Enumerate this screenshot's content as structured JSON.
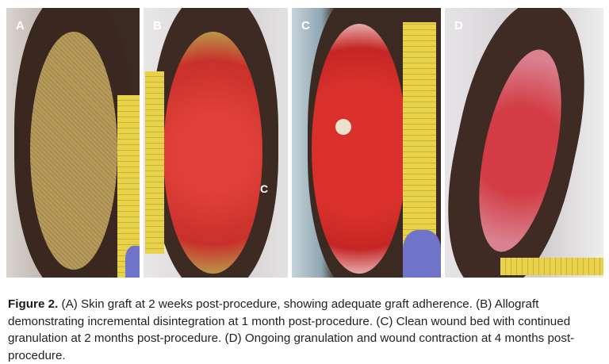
{
  "figure": {
    "panels": [
      {
        "label": "A",
        "wound_color": "#b59a5a"
      },
      {
        "label": "B",
        "inner_label": "C",
        "wound_color": "#d8352e"
      },
      {
        "label": "C",
        "wound_color": "#d42a2a"
      },
      {
        "label": "D",
        "wound_color": "#cf4b55"
      }
    ],
    "caption": {
      "title": "Figure 2.",
      "text": " (A) Skin graft at 2 weeks post-procedure, showing adequate graft adherence. (B) Allograft demonstrating incremental disintegration at 1 month post-procedure. (C) Clean wound bed with continued granulation at 2 months post-procedure. (D) Ongoing granulation and wound contraction at 4 months post-procedure."
    }
  }
}
